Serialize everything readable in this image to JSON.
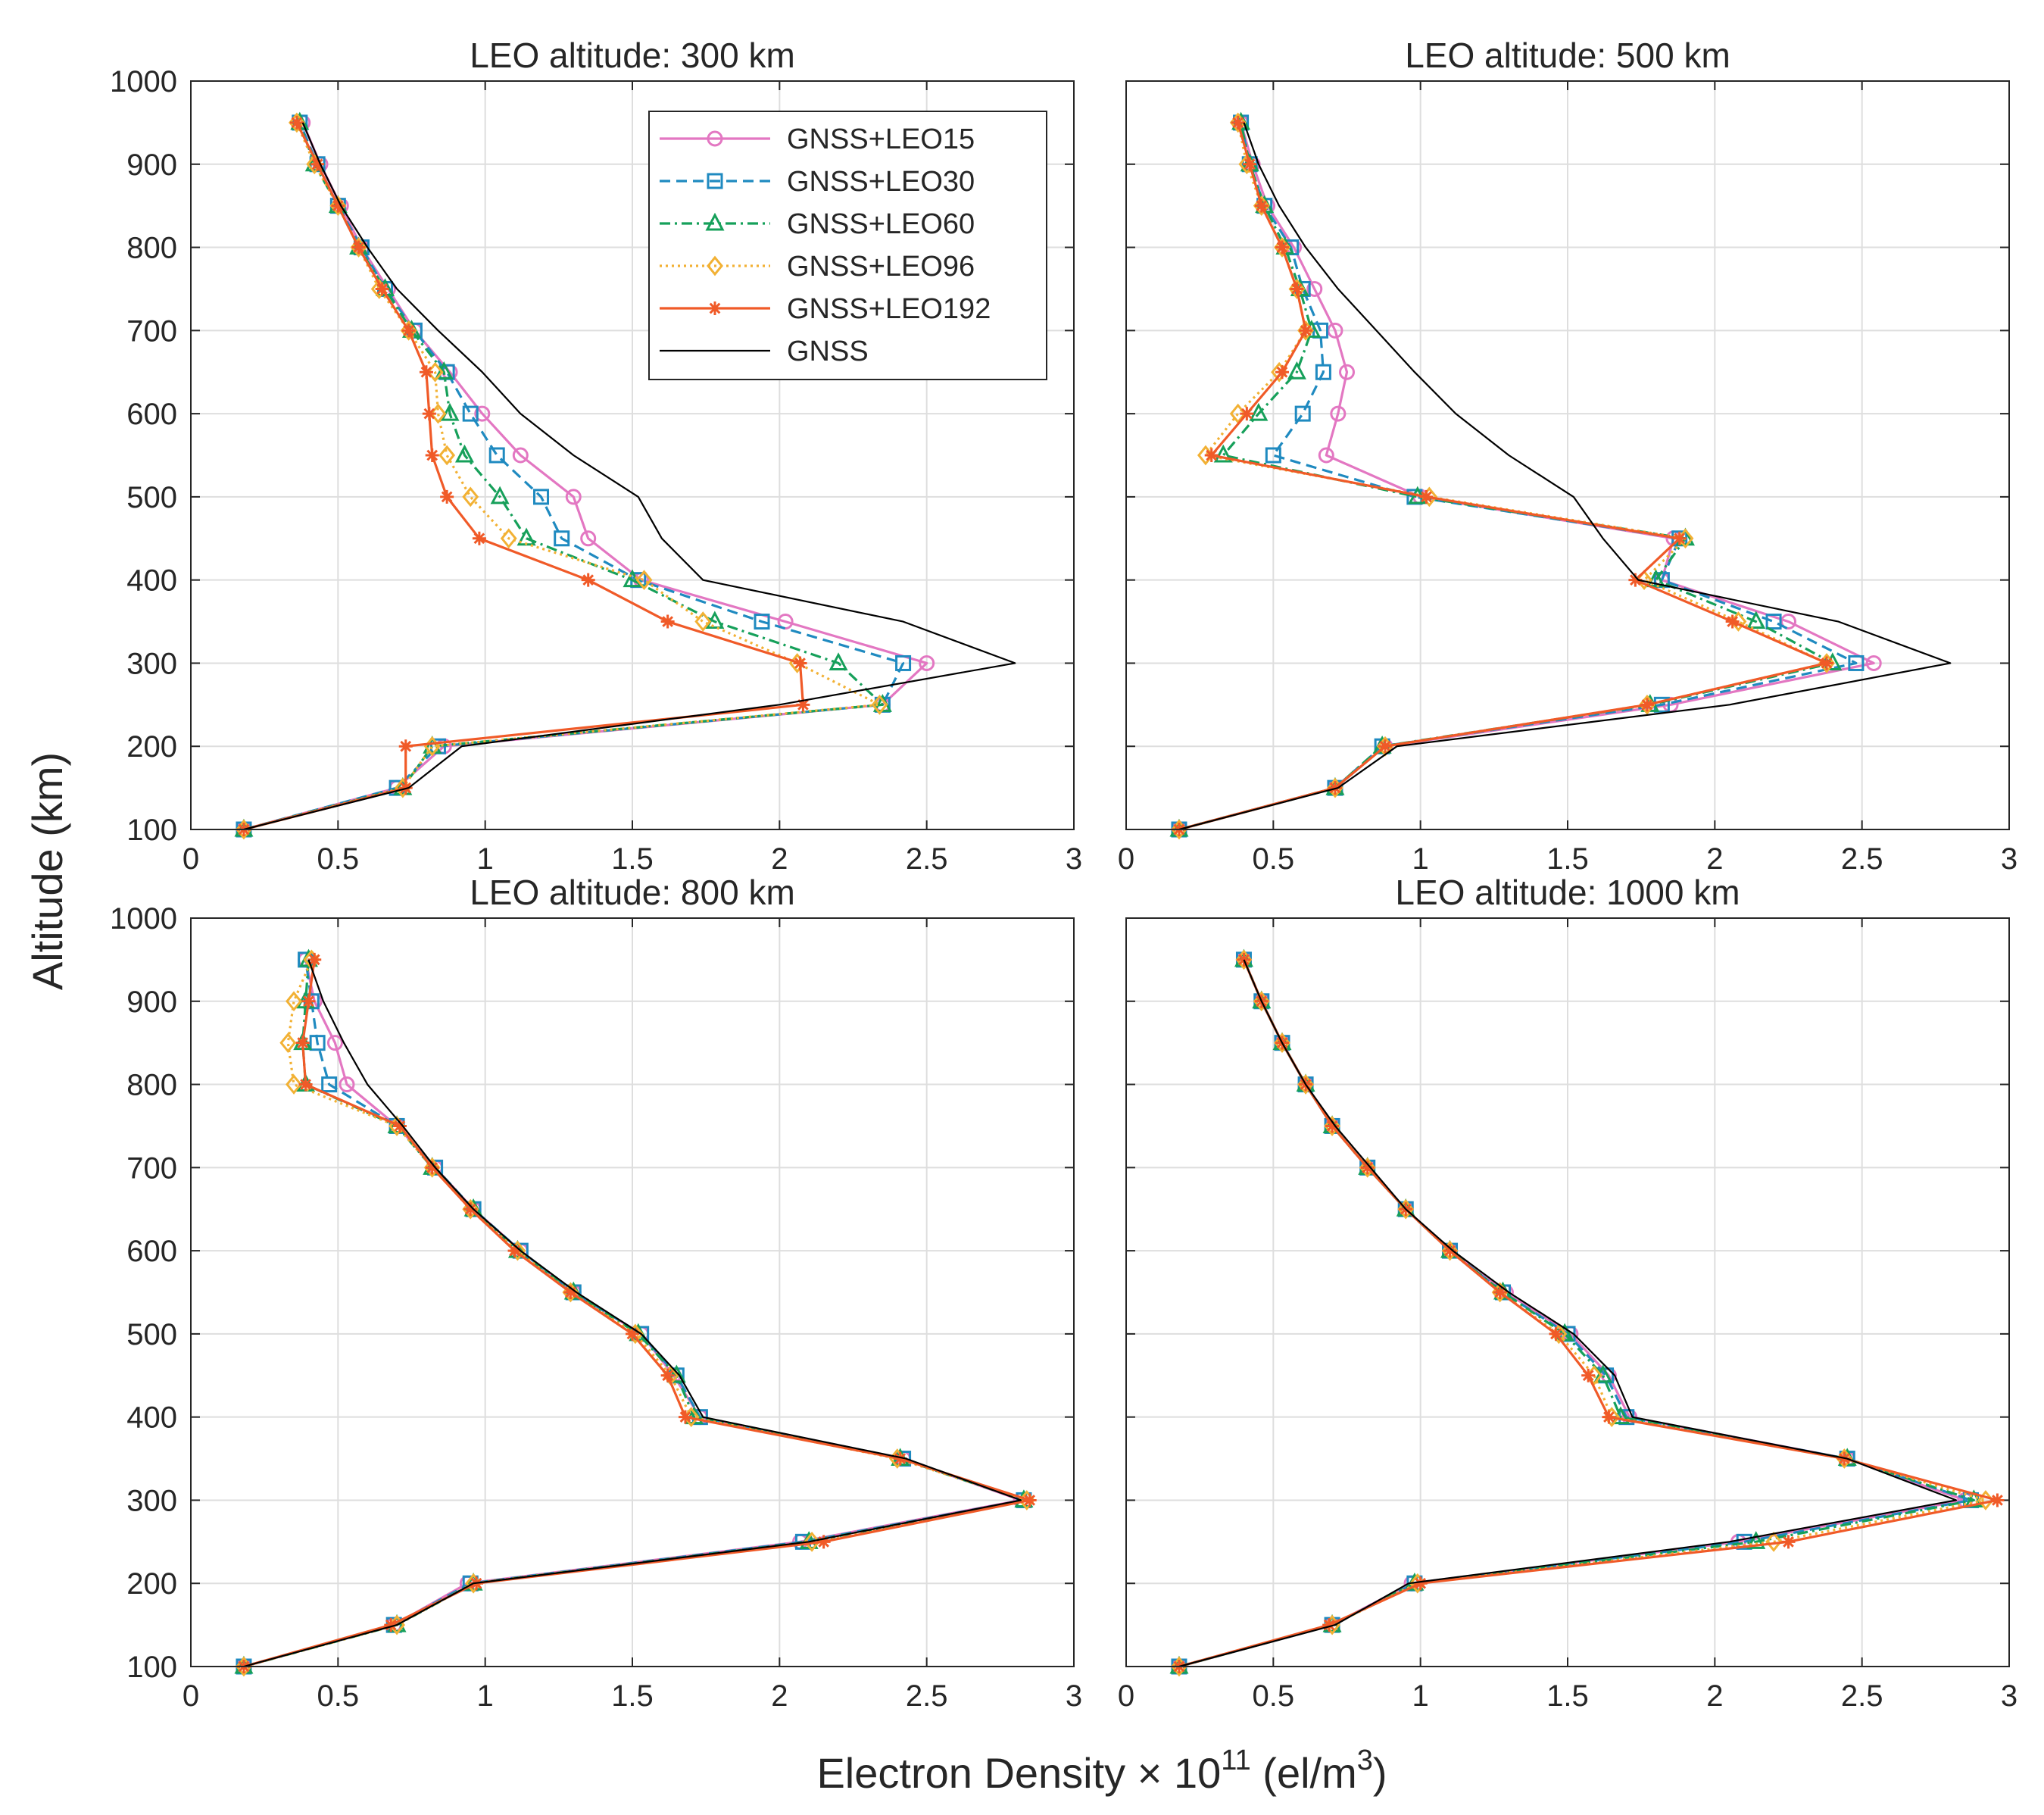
{
  "figure": {
    "ylabel": "Altitude (km)",
    "xlabel": {
      "prefix": "Electron Density × 10",
      "exponent": "11",
      "unit_prefix": " (el/m",
      "unit_exponent": "3",
      "unit_suffix": ")"
    }
  },
  "chart_data": [
    {
      "type": "line",
      "title": "LEO altitude: 300 km",
      "xlim": [
        0,
        3
      ],
      "ylim": [
        100,
        1000
      ],
      "xticks": [
        "0",
        "0.5",
        "1",
        "1.5",
        "2",
        "2.5",
        "3"
      ],
      "yticks": [
        "100",
        "200",
        "300",
        "400",
        "500",
        "600",
        "700",
        "800",
        "900",
        "1000"
      ],
      "grid": true,
      "legend_position": "top-right",
      "y": [
        100,
        150,
        200,
        250,
        300,
        350,
        400,
        450,
        500,
        550,
        600,
        650,
        700,
        750,
        800,
        850,
        900,
        950
      ],
      "series": [
        {
          "name": "GNSS+LEO15",
          "x": [
            0.18,
            0.7,
            0.86,
            2.35,
            2.5,
            2.02,
            1.53,
            1.35,
            1.3,
            1.12,
            0.99,
            0.88,
            0.76,
            0.67,
            0.58,
            0.51,
            0.44,
            0.38
          ]
        },
        {
          "name": "GNSS+LEO30",
          "x": [
            0.18,
            0.7,
            0.84,
            2.35,
            2.42,
            1.94,
            1.52,
            1.26,
            1.19,
            1.04,
            0.95,
            0.87,
            0.76,
            0.66,
            0.58,
            0.5,
            0.43,
            0.37
          ]
        },
        {
          "name": "GNSS+LEO60",
          "x": [
            0.18,
            0.72,
            0.82,
            2.35,
            2.2,
            1.78,
            1.5,
            1.14,
            1.05,
            0.93,
            0.88,
            0.86,
            0.75,
            0.66,
            0.57,
            0.5,
            0.42,
            0.37
          ]
        },
        {
          "name": "GNSS+LEO96",
          "x": [
            0.18,
            0.72,
            0.82,
            2.34,
            2.06,
            1.74,
            1.54,
            1.08,
            0.95,
            0.87,
            0.84,
            0.83,
            0.74,
            0.64,
            0.57,
            0.5,
            0.42,
            0.36
          ]
        },
        {
          "name": "GNSS+LEO192",
          "x": [
            0.18,
            0.73,
            0.73,
            2.08,
            2.07,
            1.62,
            1.35,
            0.98,
            0.87,
            0.82,
            0.81,
            0.8,
            0.74,
            0.65,
            0.57,
            0.5,
            0.43,
            0.36
          ]
        },
        {
          "name": "GNSS",
          "x": [
            0.18,
            0.74,
            0.92,
            2.0,
            2.8,
            2.42,
            1.74,
            1.6,
            1.52,
            1.3,
            1.12,
            0.99,
            0.84,
            0.7,
            0.6,
            0.51,
            0.44,
            0.38
          ]
        }
      ]
    },
    {
      "type": "line",
      "title": "LEO altitude: 500 km",
      "xlim": [
        0,
        3
      ],
      "ylim": [
        100,
        1000
      ],
      "xticks": [
        "0",
        "0.5",
        "1",
        "1.5",
        "2",
        "2.5",
        "3"
      ],
      "yticks": [],
      "grid": true,
      "y": [
        100,
        150,
        200,
        250,
        300,
        350,
        400,
        450,
        500,
        550,
        600,
        650,
        700,
        750,
        800,
        850,
        900,
        950
      ],
      "series": [
        {
          "name": "GNSS+LEO15",
          "x": [
            0.18,
            0.71,
            0.88,
            1.85,
            2.54,
            2.25,
            1.82,
            1.86,
            1.0,
            0.68,
            0.72,
            0.75,
            0.71,
            0.64,
            0.57,
            0.48,
            0.43,
            0.39
          ]
        },
        {
          "name": "GNSS+LEO30",
          "x": [
            0.18,
            0.71,
            0.87,
            1.82,
            2.48,
            2.2,
            1.82,
            1.88,
            0.98,
            0.5,
            0.6,
            0.67,
            0.66,
            0.6,
            0.56,
            0.47,
            0.42,
            0.39
          ]
        },
        {
          "name": "GNSS+LEO60",
          "x": [
            0.18,
            0.71,
            0.87,
            1.78,
            2.4,
            2.14,
            1.8,
            1.9,
            0.99,
            0.33,
            0.45,
            0.58,
            0.63,
            0.59,
            0.54,
            0.47,
            0.42,
            0.39
          ]
        },
        {
          "name": "GNSS+LEO96",
          "x": [
            0.18,
            0.71,
            0.88,
            1.77,
            2.38,
            2.08,
            1.76,
            1.9,
            1.03,
            0.27,
            0.38,
            0.52,
            0.61,
            0.58,
            0.53,
            0.46,
            0.41,
            0.38
          ]
        },
        {
          "name": "GNSS+LEO192",
          "x": [
            0.18,
            0.71,
            0.88,
            1.77,
            2.38,
            2.06,
            1.73,
            1.88,
            1.02,
            0.29,
            0.41,
            0.53,
            0.61,
            0.58,
            0.53,
            0.46,
            0.42,
            0.38
          ]
        },
        {
          "name": "GNSS",
          "x": [
            0.18,
            0.72,
            0.92,
            2.05,
            2.8,
            2.42,
            1.74,
            1.62,
            1.52,
            1.3,
            1.12,
            0.98,
            0.85,
            0.72,
            0.61,
            0.52,
            0.45,
            0.4
          ]
        }
      ]
    },
    {
      "type": "line",
      "title": "LEO altitude: 800 km",
      "xlim": [
        0,
        3
      ],
      "ylim": [
        100,
        1000
      ],
      "xticks": [
        "0",
        "0.5",
        "1",
        "1.5",
        "2",
        "2.5",
        "3"
      ],
      "yticks": [
        "100",
        "200",
        "300",
        "400",
        "500",
        "600",
        "700",
        "800",
        "900",
        "1000"
      ],
      "grid": true,
      "y": [
        100,
        150,
        200,
        250,
        300,
        350,
        400,
        450,
        500,
        550,
        600,
        650,
        700,
        750,
        800,
        850,
        900,
        950
      ],
      "series": [
        {
          "name": "GNSS+LEO15",
          "x": [
            0.18,
            0.69,
            0.94,
            2.07,
            2.82,
            2.42,
            1.73,
            1.64,
            1.53,
            1.3,
            1.12,
            0.96,
            0.83,
            0.7,
            0.53,
            0.49,
            0.42,
            0.39
          ]
        },
        {
          "name": "GNSS+LEO30",
          "x": [
            0.18,
            0.69,
            0.95,
            2.08,
            2.83,
            2.42,
            1.73,
            1.65,
            1.53,
            1.3,
            1.12,
            0.96,
            0.83,
            0.7,
            0.47,
            0.43,
            0.41,
            0.39
          ]
        },
        {
          "name": "GNSS+LEO60",
          "x": [
            0.18,
            0.7,
            0.96,
            2.1,
            2.83,
            2.41,
            1.71,
            1.65,
            1.52,
            1.3,
            1.11,
            0.96,
            0.82,
            0.7,
            0.39,
            0.38,
            0.39,
            0.4
          ]
        },
        {
          "name": "GNSS+LEO96",
          "x": [
            0.18,
            0.7,
            0.96,
            2.11,
            2.84,
            2.4,
            1.7,
            1.63,
            1.51,
            1.29,
            1.11,
            0.95,
            0.82,
            0.7,
            0.35,
            0.33,
            0.35,
            0.41
          ]
        },
        {
          "name": "GNSS+LEO192",
          "x": [
            0.18,
            0.68,
            0.97,
            2.15,
            2.85,
            2.41,
            1.68,
            1.62,
            1.5,
            1.29,
            1.1,
            0.95,
            0.82,
            0.71,
            0.39,
            0.38,
            0.4,
            0.42
          ]
        },
        {
          "name": "GNSS",
          "x": [
            0.18,
            0.7,
            0.96,
            2.1,
            2.82,
            2.43,
            1.74,
            1.66,
            1.53,
            1.31,
            1.12,
            0.96,
            0.83,
            0.72,
            0.6,
            0.52,
            0.45,
            0.4
          ]
        }
      ]
    },
    {
      "type": "line",
      "title": "LEO altitude: 1000 km",
      "xlim": [
        0,
        3
      ],
      "ylim": [
        100,
        1000
      ],
      "xticks": [
        "0",
        "0.5",
        "1",
        "1.5",
        "2",
        "2.5",
        "3"
      ],
      "yticks": [],
      "grid": true,
      "y": [
        100,
        150,
        200,
        250,
        300,
        350,
        400,
        450,
        500,
        550,
        600,
        650,
        700,
        750,
        800,
        850,
        900,
        950
      ],
      "series": [
        {
          "name": "GNSS+LEO15",
          "x": [
            0.18,
            0.7,
            0.97,
            2.08,
            2.85,
            2.45,
            1.71,
            1.64,
            1.51,
            1.29,
            1.1,
            0.95,
            0.82,
            0.7,
            0.61,
            0.53,
            0.46,
            0.4
          ]
        },
        {
          "name": "GNSS+LEO30",
          "x": [
            0.18,
            0.7,
            0.98,
            2.1,
            2.87,
            2.45,
            1.7,
            1.63,
            1.5,
            1.28,
            1.1,
            0.95,
            0.82,
            0.7,
            0.61,
            0.53,
            0.46,
            0.4
          ]
        },
        {
          "name": "GNSS+LEO60",
          "x": [
            0.18,
            0.7,
            0.98,
            2.14,
            2.88,
            2.45,
            1.68,
            1.62,
            1.49,
            1.28,
            1.1,
            0.95,
            0.82,
            0.7,
            0.61,
            0.53,
            0.46,
            0.4
          ]
        },
        {
          "name": "GNSS+LEO96",
          "x": [
            0.18,
            0.7,
            0.99,
            2.2,
            2.92,
            2.44,
            1.65,
            1.59,
            1.47,
            1.27,
            1.1,
            0.95,
            0.82,
            0.7,
            0.61,
            0.53,
            0.46,
            0.4
          ]
        },
        {
          "name": "GNSS+LEO192",
          "x": [
            0.18,
            0.69,
            1.0,
            2.25,
            2.96,
            2.44,
            1.64,
            1.57,
            1.46,
            1.27,
            1.1,
            0.95,
            0.82,
            0.7,
            0.61,
            0.53,
            0.46,
            0.4
          ]
        },
        {
          "name": "GNSS",
          "x": [
            0.18,
            0.71,
            0.96,
            2.05,
            2.82,
            2.45,
            1.72,
            1.66,
            1.52,
            1.3,
            1.11,
            0.95,
            0.83,
            0.71,
            0.61,
            0.53,
            0.46,
            0.4
          ]
        }
      ]
    }
  ],
  "series_styles": [
    {
      "name": "GNSS+LEO15",
      "color": "#e377c2",
      "dash": "",
      "marker": "circle"
    },
    {
      "name": "GNSS+LEO30",
      "color": "#1f8ac0",
      "dash": "14,8",
      "marker": "square"
    },
    {
      "name": "GNSS+LEO60",
      "color": "#16a05a",
      "dash": "14,6,3,6",
      "marker": "triangle"
    },
    {
      "name": "GNSS+LEO96",
      "color": "#f2b134",
      "dash": "3,5",
      "marker": "diamond"
    },
    {
      "name": "GNSS+LEO192",
      "color": "#f05a28",
      "dash": "",
      "marker": "asterisk"
    },
    {
      "name": "GNSS",
      "color": "#000000",
      "dash": "",
      "marker": "none"
    }
  ]
}
